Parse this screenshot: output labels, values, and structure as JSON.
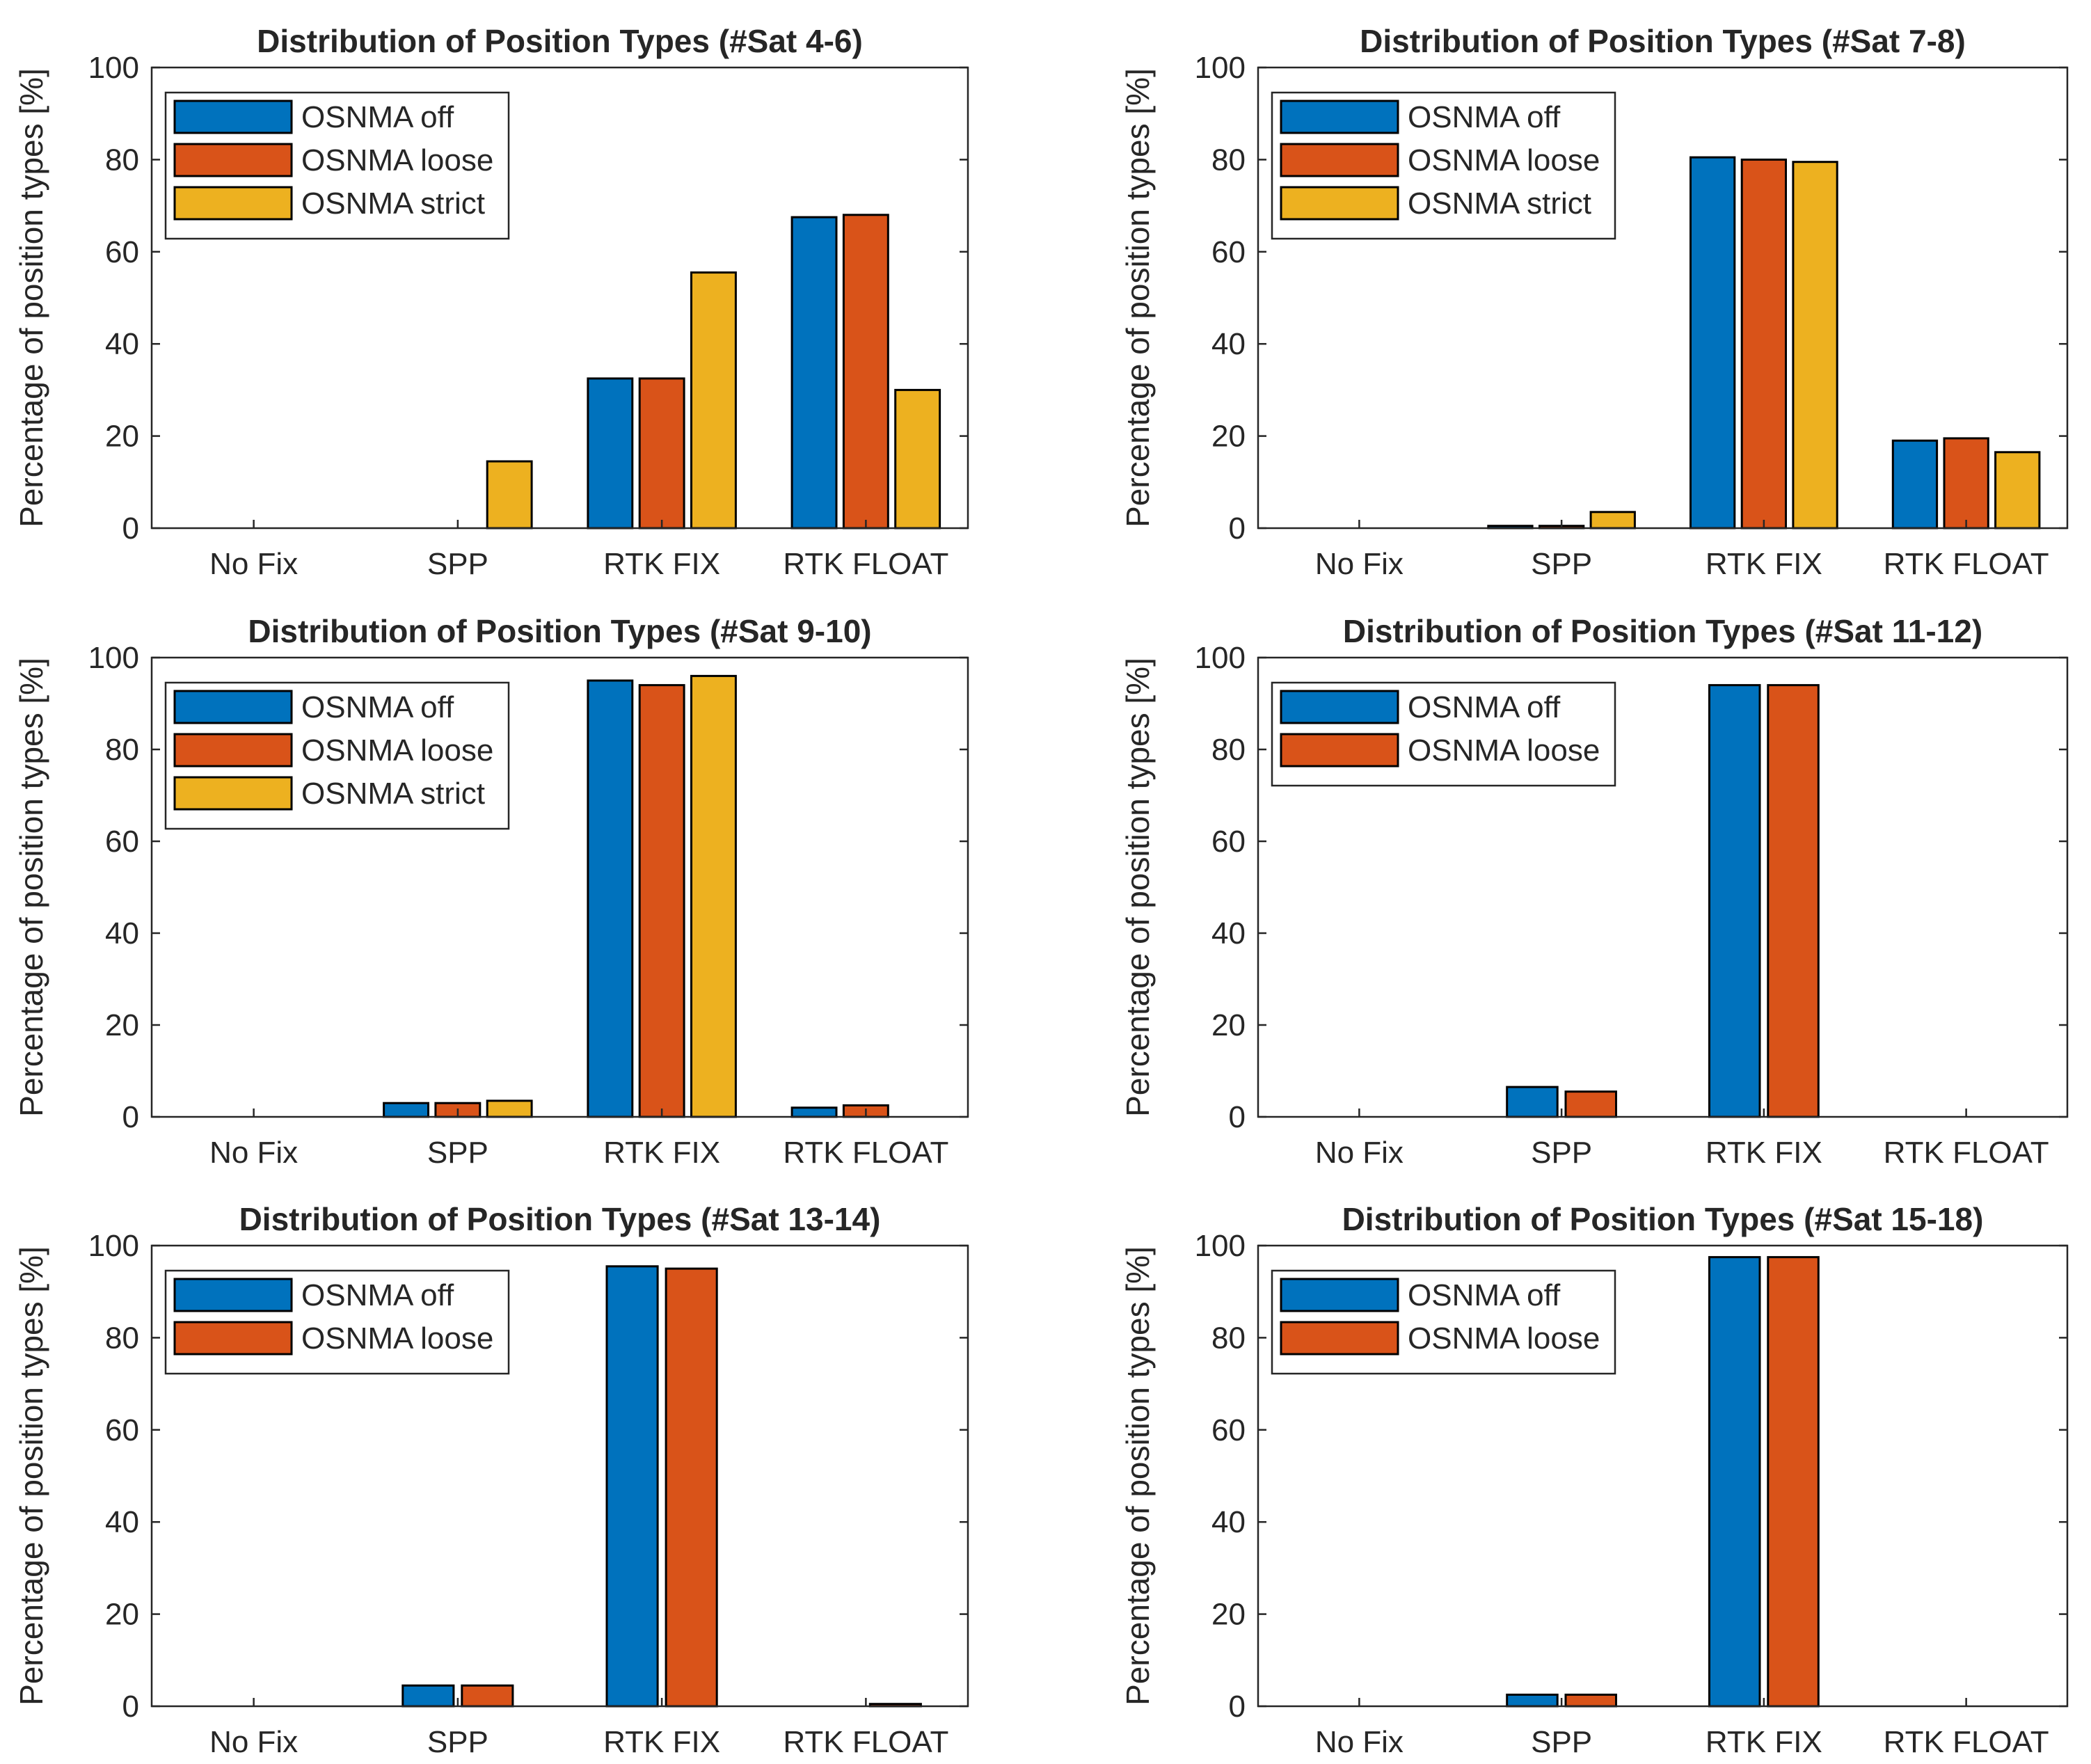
{
  "colors": {
    "OSNMA off": "#0072BD",
    "OSNMA loose": "#D95319",
    "OSNMA strict": "#EDB120",
    "axis": "#262626",
    "background": "#ffffff"
  },
  "chart_data": [
    {
      "type": "bar",
      "title": "Distribution of Position Types (#Sat 4-6)",
      "xlabel": "",
      "ylabel": "Percentage of position types [%]",
      "ylim": [
        0,
        100
      ],
      "yticks": [
        0,
        20,
        40,
        60,
        80,
        100
      ],
      "categories": [
        "No Fix",
        "SPP",
        "RTK FIX",
        "RTK FLOAT"
      ],
      "legend_position": "top-left",
      "series": [
        {
          "name": "OSNMA off",
          "values": [
            0,
            0,
            32.5,
            67.5
          ]
        },
        {
          "name": "OSNMA loose",
          "values": [
            0,
            0,
            32.5,
            68
          ]
        },
        {
          "name": "OSNMA strict",
          "values": [
            0,
            14.5,
            55.5,
            30
          ]
        }
      ]
    },
    {
      "type": "bar",
      "title": "Distribution of Position Types (#Sat 7-8)",
      "xlabel": "",
      "ylabel": "Percentage of position types [%]",
      "ylim": [
        0,
        100
      ],
      "yticks": [
        0,
        20,
        40,
        60,
        80,
        100
      ],
      "categories": [
        "No Fix",
        "SPP",
        "RTK FIX",
        "RTK FLOAT"
      ],
      "legend_position": "top-left",
      "series": [
        {
          "name": "OSNMA off",
          "values": [
            0,
            0.5,
            80.5,
            19
          ]
        },
        {
          "name": "OSNMA loose",
          "values": [
            0,
            0.5,
            80,
            19.5
          ]
        },
        {
          "name": "OSNMA strict",
          "values": [
            0,
            3.5,
            79.5,
            16.5
          ]
        }
      ]
    },
    {
      "type": "bar",
      "title": "Distribution of Position Types (#Sat 9-10)",
      "xlabel": "",
      "ylabel": "Percentage of position types [%]",
      "ylim": [
        0,
        100
      ],
      "yticks": [
        0,
        20,
        40,
        60,
        80,
        100
      ],
      "categories": [
        "No Fix",
        "SPP",
        "RTK FIX",
        "RTK FLOAT"
      ],
      "legend_position": "top-left",
      "series": [
        {
          "name": "OSNMA off",
          "values": [
            0,
            3,
            95,
            2
          ]
        },
        {
          "name": "OSNMA loose",
          "values": [
            0,
            3,
            94,
            2.5
          ]
        },
        {
          "name": "OSNMA strict",
          "values": [
            0,
            3.5,
            96,
            0
          ]
        }
      ]
    },
    {
      "type": "bar",
      "title": "Distribution of Position Types (#Sat 11-12)",
      "xlabel": "",
      "ylabel": "Percentage of position types [%]",
      "ylim": [
        0,
        100
      ],
      "yticks": [
        0,
        20,
        40,
        60,
        80,
        100
      ],
      "categories": [
        "No Fix",
        "SPP",
        "RTK FIX",
        "RTK FLOAT"
      ],
      "legend_position": "top-left",
      "series": [
        {
          "name": "OSNMA off",
          "values": [
            0,
            6.5,
            94,
            0
          ]
        },
        {
          "name": "OSNMA loose",
          "values": [
            0,
            5.5,
            94,
            0
          ]
        }
      ]
    },
    {
      "type": "bar",
      "title": "Distribution of Position Types (#Sat 13-14)",
      "xlabel": "",
      "ylabel": "Percentage of position types [%]",
      "ylim": [
        0,
        100
      ],
      "yticks": [
        0,
        20,
        40,
        60,
        80,
        100
      ],
      "categories": [
        "No Fix",
        "SPP",
        "RTK FIX",
        "RTK FLOAT"
      ],
      "legend_position": "top-left",
      "series": [
        {
          "name": "OSNMA off",
          "values": [
            0,
            4.5,
            95.5,
            0
          ]
        },
        {
          "name": "OSNMA loose",
          "values": [
            0,
            4.5,
            95,
            0.5
          ]
        }
      ]
    },
    {
      "type": "bar",
      "title": "Distribution of Position Types (#Sat 15-18)",
      "xlabel": "",
      "ylabel": "Percentage of position types [%]",
      "ylim": [
        0,
        100
      ],
      "yticks": [
        0,
        20,
        40,
        60,
        80,
        100
      ],
      "categories": [
        "No Fix",
        "SPP",
        "RTK FIX",
        "RTK FLOAT"
      ],
      "legend_position": "top-left",
      "series": [
        {
          "name": "OSNMA off",
          "values": [
            0,
            2.5,
            97.5,
            0
          ]
        },
        {
          "name": "OSNMA loose",
          "values": [
            0,
            2.5,
            97.5,
            0
          ]
        }
      ]
    }
  ]
}
